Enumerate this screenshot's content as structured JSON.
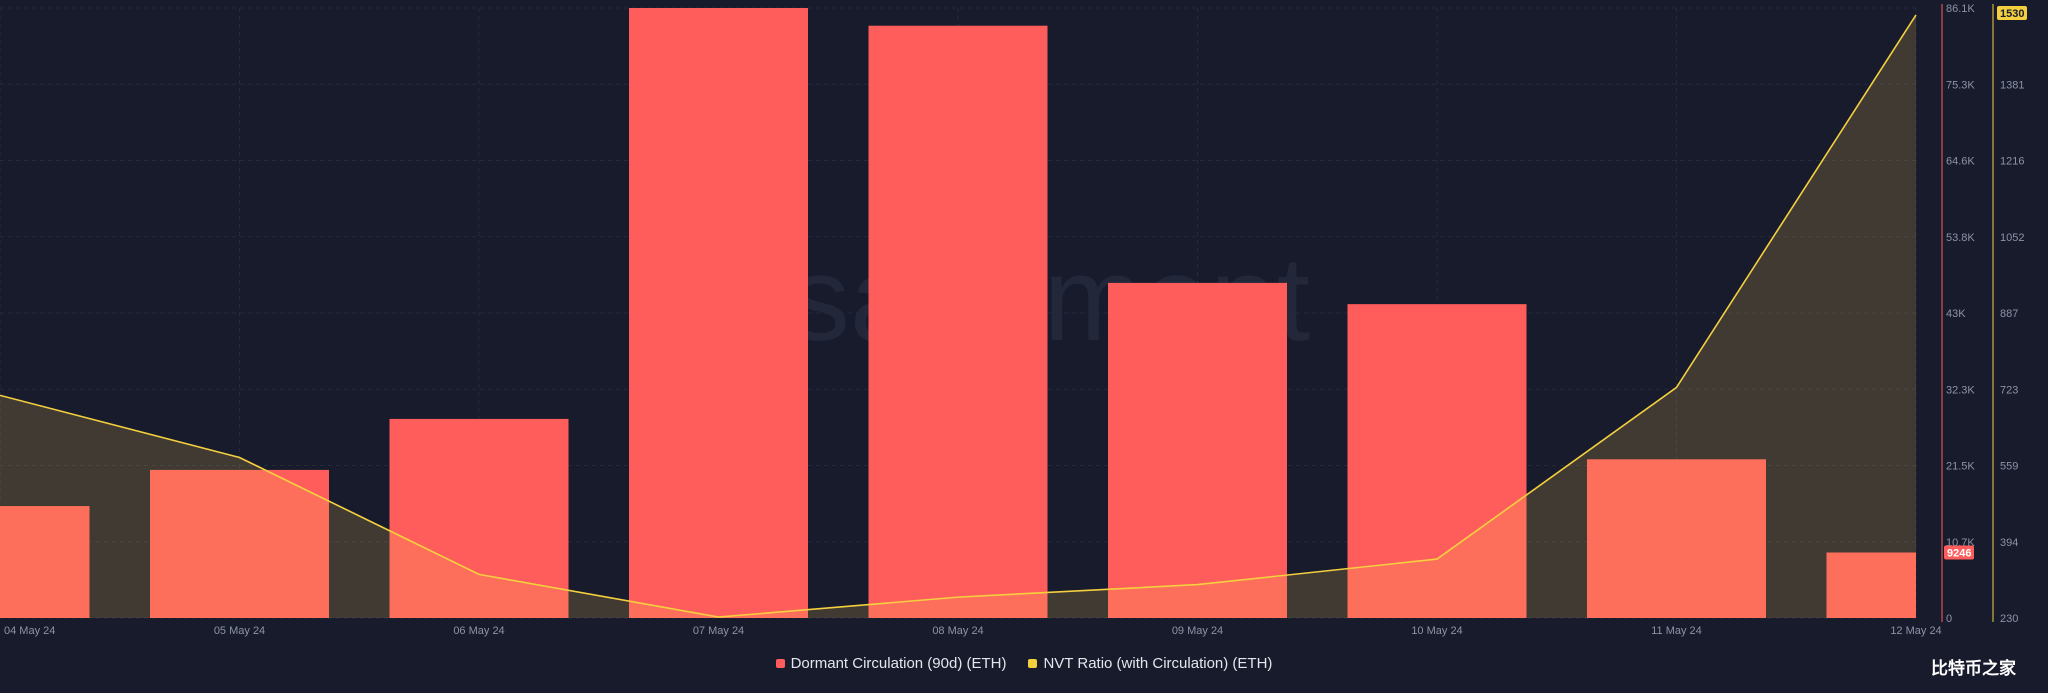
{
  "chart_data": {
    "type": "bar",
    "categories": [
      "04 May 24",
      "05 May 24",
      "06 May 24",
      "07 May 24",
      "08 May 24",
      "09 May 24",
      "10 May 24",
      "11 May 24",
      "12 May 24"
    ],
    "series": [
      {
        "name": "Dormant Circulation (90d) (ETH)",
        "type": "bar",
        "axis": "left",
        "color": "#ff5c5c",
        "values": [
          15800,
          20900,
          28100,
          86100,
          83600,
          47300,
          44300,
          22400,
          9246
        ]
      },
      {
        "name": "NVT Ratio (with Circulation) (ETH)",
        "type": "area-line",
        "axis": "right",
        "color": "#f4d03f",
        "values": [
          710,
          576,
          324,
          232,
          275,
          302,
          357,
          727,
          1530
        ]
      }
    ],
    "left_axis": {
      "ticks": [
        "0",
        "10.7K",
        "21.5K",
        "32.3K",
        "43K",
        "53.8K",
        "64.6K",
        "75.3K",
        "86.1K"
      ],
      "ylim": [
        0,
        86100
      ],
      "current_value": "9246"
    },
    "right_axis": {
      "ticks": [
        "230",
        "394",
        "559",
        "723",
        "887",
        "1052",
        "1216",
        "1381",
        "1530"
      ],
      "ylim": [
        230,
        1545
      ],
      "current_value": "1530"
    },
    "x_ticks": [
      "04 May 24",
      "05 May 24",
      "06 May 24",
      "07 May 24",
      "08 May 24",
      "09 May 24",
      "10 May 24",
      "11 May 24",
      "12 May 24"
    ],
    "watermark": "santiment",
    "grid": true,
    "legend_position": "bottom-center"
  },
  "legend": {
    "items": [
      {
        "label": "Dormant Circulation (90d) (ETH)",
        "color": "#ff5c5c"
      },
      {
        "label": "NVT Ratio (with Circulation) (ETH)",
        "color": "#f4d03f"
      }
    ]
  },
  "brand": "比特币之家"
}
